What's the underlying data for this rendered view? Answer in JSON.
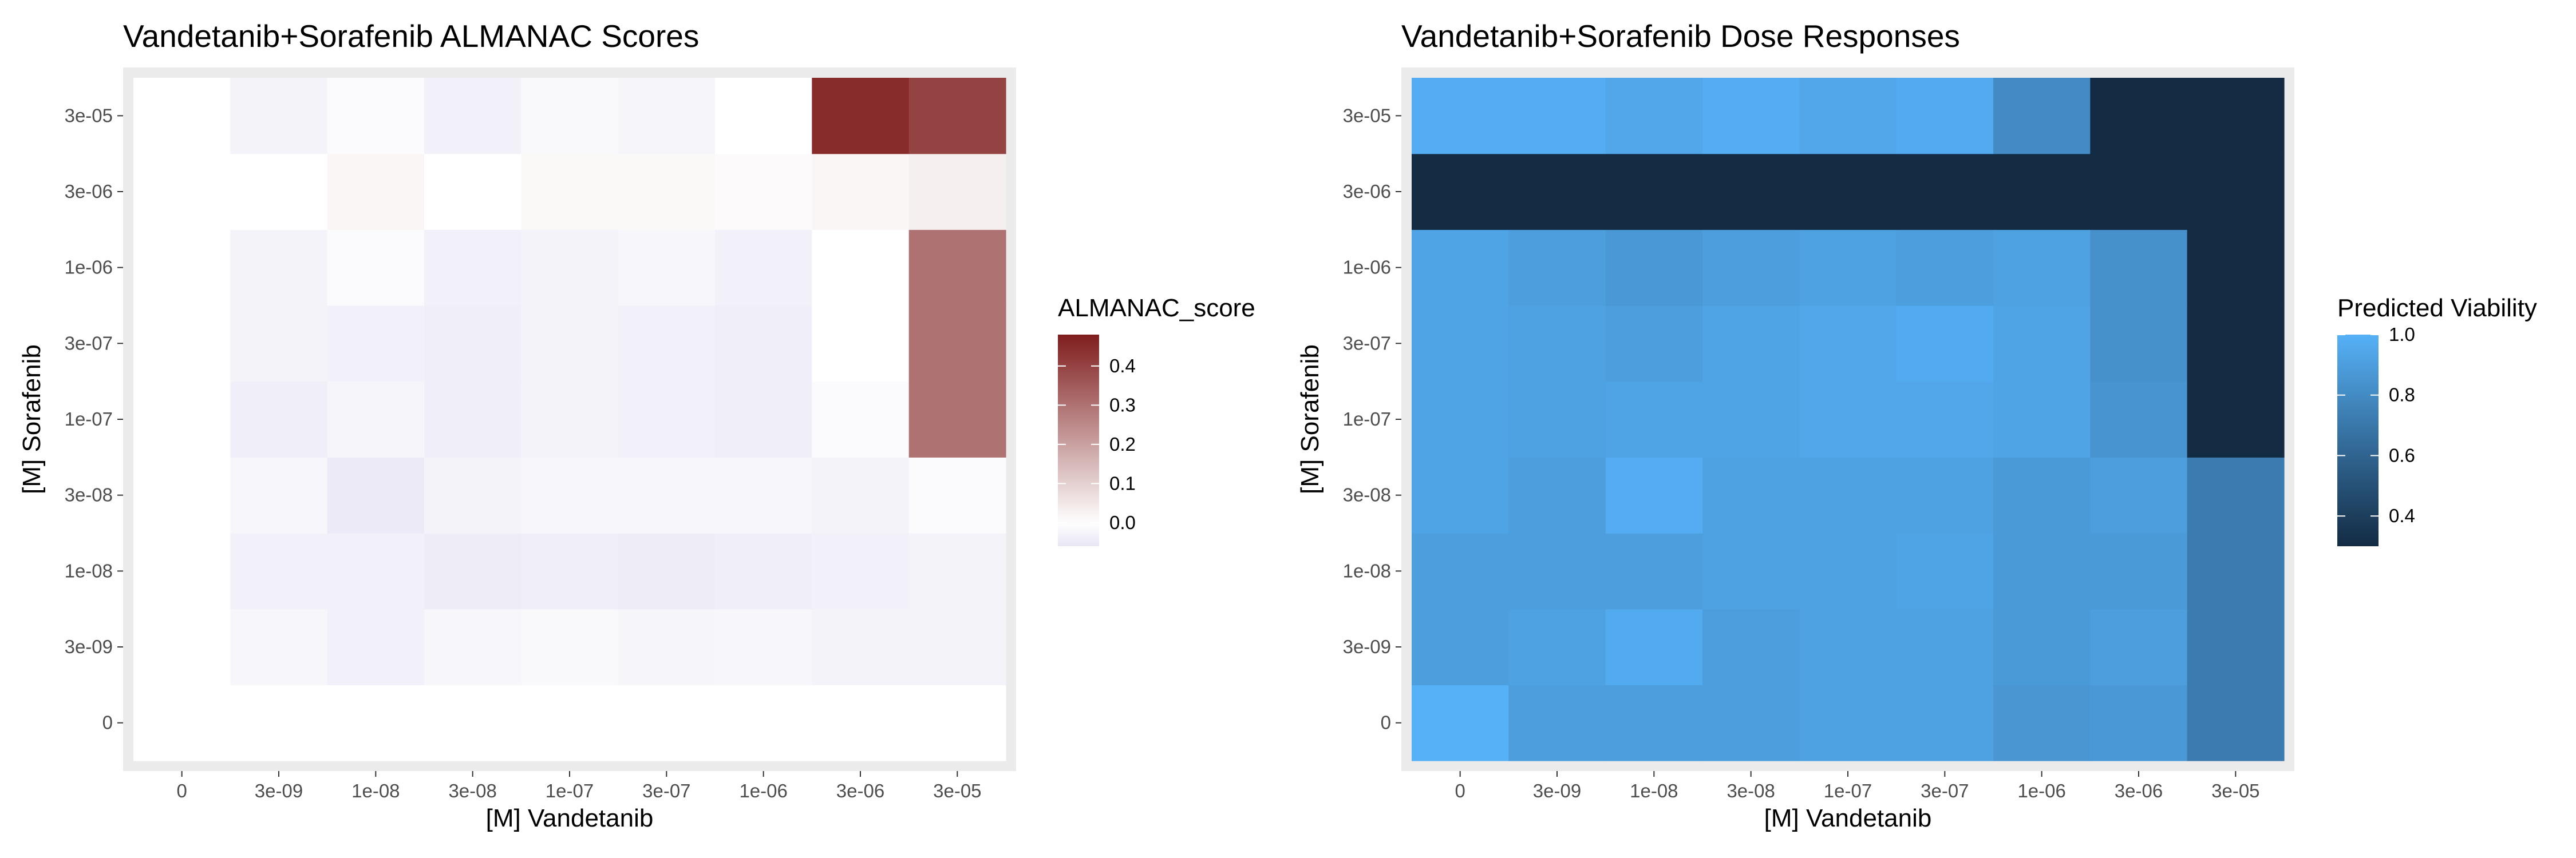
{
  "chart_data": [
    {
      "type": "heatmap",
      "title": "Vandetanib+Sorafenib ALMANAC Scores",
      "xlabel": "[M] Vandetanib",
      "ylabel": "[M] Sorafenib",
      "x_categories": [
        "0",
        "3e-09",
        "1e-08",
        "3e-08",
        "1e-07",
        "3e-07",
        "1e-06",
        "3e-06",
        "3e-05"
      ],
      "y_categories": [
        "0",
        "3e-09",
        "1e-08",
        "3e-08",
        "1e-07",
        "3e-07",
        "1e-06",
        "3e-06",
        "3e-05"
      ],
      "values": [
        [
          0,
          0,
          0,
          0,
          0,
          0,
          0,
          0,
          0
        ],
        [
          0,
          -0.02,
          -0.035,
          -0.02,
          -0.015,
          -0.025,
          -0.02,
          -0.03,
          -0.03
        ],
        [
          0,
          -0.035,
          -0.035,
          -0.045,
          -0.04,
          -0.045,
          -0.04,
          -0.035,
          -0.03
        ],
        [
          0,
          -0.02,
          -0.05,
          -0.03,
          -0.02,
          -0.02,
          -0.02,
          -0.03,
          -0.01
        ],
        [
          0,
          -0.04,
          -0.025,
          -0.04,
          -0.03,
          -0.035,
          -0.04,
          -0.01,
          0.3
        ],
        [
          0,
          -0.03,
          -0.035,
          -0.04,
          -0.03,
          -0.035,
          -0.04,
          0.0,
          0.3
        ],
        [
          0,
          -0.03,
          -0.01,
          -0.035,
          -0.03,
          -0.02,
          -0.035,
          0.0,
          0.3
        ],
        [
          0,
          0.0,
          0.02,
          0.0,
          0.015,
          0.015,
          0.01,
          0.02,
          0.035
        ],
        [
          0,
          -0.03,
          -0.01,
          -0.035,
          -0.015,
          -0.025,
          0.0,
          0.45,
          0.4
        ]
      ],
      "legend": {
        "title": "ALMANAC_score",
        "range": [
          -0.06,
          0.48
        ],
        "ticks": [
          0.0,
          0.1,
          0.2,
          0.3,
          0.4
        ],
        "tick_labels": [
          "0.0",
          "0.1",
          "0.2",
          "0.3",
          "0.4"
        ],
        "colors": {
          "low": "#e8e6f4",
          "mid": "#ffffff",
          "high": "#7f1d1d"
        }
      }
    },
    {
      "type": "heatmap",
      "title": "Vandetanib+Sorafenib Dose Responses",
      "xlabel": "[M] Vandetanib",
      "ylabel": "[M] Sorafenib",
      "x_categories": [
        "0",
        "3e-09",
        "1e-08",
        "3e-08",
        "1e-07",
        "3e-07",
        "1e-06",
        "3e-06",
        "3e-05"
      ],
      "y_categories": [
        "0",
        "3e-09",
        "1e-08",
        "3e-08",
        "1e-07",
        "3e-07",
        "1e-06",
        "3e-06",
        "3e-05"
      ],
      "values": [
        [
          1.0,
          0.9,
          0.9,
          0.9,
          0.92,
          0.92,
          0.86,
          0.87,
          0.72
        ],
        [
          0.9,
          0.92,
          0.97,
          0.9,
          0.92,
          0.92,
          0.88,
          0.9,
          0.72
        ],
        [
          0.9,
          0.9,
          0.9,
          0.92,
          0.92,
          0.93,
          0.88,
          0.88,
          0.72
        ],
        [
          0.93,
          0.9,
          0.98,
          0.92,
          0.92,
          0.92,
          0.88,
          0.9,
          0.72
        ],
        [
          0.93,
          0.92,
          0.93,
          0.93,
          0.95,
          0.95,
          0.93,
          0.85,
          0.3
        ],
        [
          0.93,
          0.92,
          0.9,
          0.93,
          0.95,
          0.97,
          0.93,
          0.83,
          0.3
        ],
        [
          0.93,
          0.9,
          0.87,
          0.9,
          0.92,
          0.9,
          0.92,
          0.83,
          0.3
        ],
        [
          0.3,
          0.25,
          0.25,
          0.25,
          0.25,
          0.25,
          0.25,
          0.25,
          0.2
        ],
        [
          0.98,
          0.98,
          0.95,
          0.98,
          0.95,
          0.97,
          0.8,
          0.3,
          0.25
        ]
      ],
      "legend": {
        "title": "Predicted Viability",
        "range": [
          0.3,
          1.0
        ],
        "ticks": [
          0.4,
          0.6,
          0.8,
          1.0
        ],
        "tick_labels": [
          "0.4",
          "0.6",
          "0.8",
          "1.0"
        ],
        "colors": {
          "low": "#132b43",
          "high": "#56b1f7"
        }
      }
    }
  ]
}
